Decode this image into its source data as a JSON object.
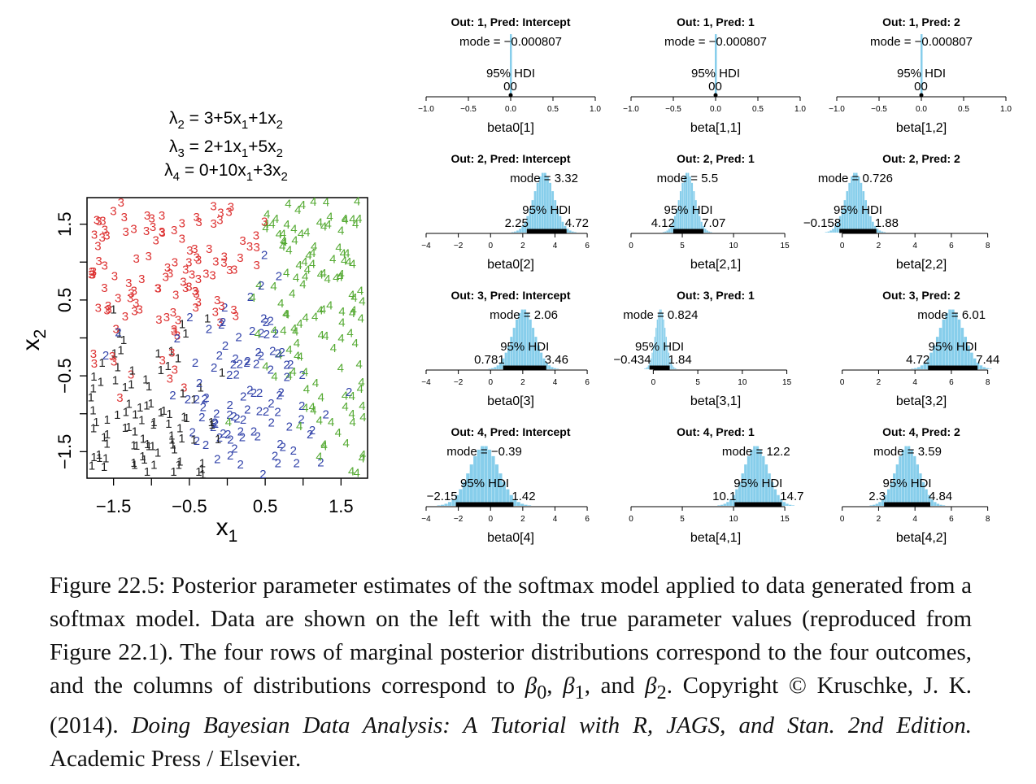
{
  "scatter": {
    "equations": [
      {
        "lambda": "λ",
        "sub": "2",
        "eq": " = 3+5x",
        "s1": "1",
        "mid": "+1x",
        "s2": "2"
      },
      {
        "lambda": "λ",
        "sub": "3",
        "eq": " = 2+1x",
        "s1": "1",
        "mid": "+5x",
        "s2": "2"
      },
      {
        "lambda": "λ",
        "sub": "4",
        "eq": " = 0+10x",
        "s1": "1",
        "mid": "+3x",
        "s2": "2"
      }
    ],
    "xlabel": "x",
    "xlabel_sub": "1",
    "ylabel": "x",
    "ylabel_sub": "2",
    "xticks": [
      "−1.5",
      "−0.5",
      "0.5",
      "1.5"
    ],
    "yticks": [
      "−1.5",
      "−0.5",
      "0.5",
      "1.5"
    ],
    "xlim": [
      -1.85,
      1.85
    ],
    "ylim": [
      -1.85,
      1.85
    ],
    "colors": {
      "1": "#222222",
      "2": "#3344aa",
      "3": "#dd3333",
      "4": "#55aa33"
    }
  },
  "chart_data": [
    {
      "type": "histogram",
      "title": "Out: 1, Pred: Intercept",
      "xlabel": "beta0[1]",
      "mode_label": "mode = −0.000807",
      "hdi_label": "95% HDI",
      "hdi_low_label": "0",
      "hdi_high_label": "0",
      "mode": -0.000807,
      "hdi": [
        0,
        0
      ],
      "xlim": [
        -1,
        1
      ],
      "xticks": [
        "−1.0",
        "−0.5",
        "0.0",
        "0.5",
        "1.0"
      ],
      "xtick_values": [
        -1,
        -0.5,
        0,
        0.5,
        1
      ],
      "spread": 0,
      "color": "#87ceeb"
    },
    {
      "type": "histogram",
      "title": "Out: 1, Pred: 1",
      "xlabel": "beta[1,1]",
      "mode_label": "mode = −0.000807",
      "hdi_label": "95% HDI",
      "hdi_low_label": "0",
      "hdi_high_label": "0",
      "mode": -0.000807,
      "hdi": [
        0,
        0
      ],
      "xlim": [
        -1,
        1
      ],
      "xticks": [
        "−1.0",
        "−0.5",
        "0.0",
        "0.5",
        "1.0"
      ],
      "xtick_values": [
        -1,
        -0.5,
        0,
        0.5,
        1
      ],
      "spread": 0,
      "color": "#87ceeb"
    },
    {
      "type": "histogram",
      "title": "Out: 1, Pred: 2",
      "xlabel": "beta[1,2]",
      "mode_label": "mode = −0.000807",
      "hdi_label": "95% HDI",
      "hdi_low_label": "0",
      "hdi_high_label": "0",
      "mode": -0.000807,
      "hdi": [
        0,
        0
      ],
      "xlim": [
        -1,
        1
      ],
      "xticks": [
        "−1.0",
        "−0.5",
        "0.0",
        "0.5",
        "1.0"
      ],
      "xtick_values": [
        -1,
        -0.5,
        0,
        0.5,
        1
      ],
      "spread": 0,
      "color": "#87ceeb"
    },
    {
      "type": "histogram",
      "title": "Out: 2, Pred: Intercept",
      "xlabel": "beta0[2]",
      "mode_label": "mode = 3.32",
      "hdi_label": "95% HDI",
      "hdi_low_label": "2.25",
      "hdi_high_label": "4.72",
      "mode": 3.32,
      "hdi": [
        2.25,
        4.72
      ],
      "xlim": [
        -4,
        6.5
      ],
      "xticks": [
        "−4",
        "−2",
        "0",
        "2",
        "4",
        "6"
      ],
      "xtick_values": [
        -4,
        -2,
        0,
        2,
        4,
        6
      ],
      "color": "#87ceeb"
    },
    {
      "type": "histogram",
      "title": "Out: 2, Pred: 1",
      "xlabel": "beta[2,1]",
      "mode_label": "mode = 5.5",
      "hdi_label": "95% HDI",
      "hdi_low_label": "4.12",
      "hdi_high_label": "7.07",
      "mode": 5.5,
      "hdi": [
        4.12,
        7.07
      ],
      "xlim": [
        0,
        16.5
      ],
      "xticks": [
        "0",
        "5",
        "10",
        "15"
      ],
      "xtick_values": [
        0,
        5,
        10,
        15
      ],
      "color": "#87ceeb"
    },
    {
      "type": "histogram",
      "title": "Out: 2, Pred: 2",
      "xlabel": "beta[2,2]",
      "mode_label": "mode = 0.726",
      "hdi_label": "95% HDI",
      "hdi_low_label": "−0.158",
      "hdi_high_label": "1.88",
      "mode": 0.726,
      "hdi": [
        -0.158,
        1.88
      ],
      "xlim": [
        -0.3,
        9
      ],
      "xticks": [
        "0",
        "2",
        "4",
        "6",
        "8"
      ],
      "xtick_values": [
        0,
        2,
        4,
        6,
        8
      ],
      "color": "#87ceeb"
    },
    {
      "type": "histogram",
      "title": "Out: 3, Pred: Intercept",
      "xlabel": "beta0[3]",
      "mode_label": "mode = 2.06",
      "hdi_label": "95% HDI",
      "hdi_low_label": "0.781",
      "hdi_high_label": "3.46",
      "mode": 2.06,
      "hdi": [
        0.781,
        3.46
      ],
      "xlim": [
        -4,
        6.5
      ],
      "xticks": [
        "−4",
        "−2",
        "0",
        "2",
        "4",
        "6"
      ],
      "xtick_values": [
        -4,
        -2,
        0,
        2,
        4,
        6
      ],
      "color": "#87ceeb"
    },
    {
      "type": "histogram",
      "title": "Out: 3, Pred: 1",
      "xlabel": "beta[3,1]",
      "mode_label": "mode = 0.824",
      "hdi_label": "95% HDI",
      "hdi_low_label": "−0.434",
      "hdi_high_label": "1.84",
      "mode": 0.824,
      "hdi": [
        -0.434,
        1.84
      ],
      "xlim": [
        -2.5,
        16.5
      ],
      "xticks": [
        "0",
        "5",
        "10",
        "15"
      ],
      "xtick_values": [
        0,
        5,
        10,
        15
      ],
      "color": "#87ceeb"
    },
    {
      "type": "histogram",
      "title": "Out: 3, Pred: 2",
      "xlabel": "beta[3,2]",
      "mode_label": "mode = 6.01",
      "hdi_label": "95% HDI",
      "hdi_low_label": "4.72",
      "hdi_high_label": "7.44",
      "mode": 6.01,
      "hdi": [
        4.72,
        7.44
      ],
      "xlim": [
        -0.3,
        9
      ],
      "xticks": [
        "0",
        "2",
        "4",
        "6",
        "8"
      ],
      "xtick_values": [
        0,
        2,
        4,
        6,
        8
      ],
      "color": "#87ceeb"
    },
    {
      "type": "histogram",
      "title": "Out: 4, Pred: Intercept",
      "xlabel": "beta0[4]",
      "mode_label": "mode = −0.39",
      "hdi_label": "95% HDI",
      "hdi_low_label": "−2.15",
      "hdi_high_label": "1.42",
      "mode": -0.39,
      "hdi": [
        -2.15,
        1.42
      ],
      "xlim": [
        -4,
        6.5
      ],
      "xticks": [
        "−4",
        "−2",
        "0",
        "2",
        "4",
        "6"
      ],
      "xtick_values": [
        -4,
        -2,
        0,
        2,
        4,
        6
      ],
      "color": "#87ceeb"
    },
    {
      "type": "histogram",
      "title": "Out: 4, Pred: 1",
      "xlabel": "beta[4,1]",
      "mode_label": "mode = 12.2",
      "hdi_label": "95% HDI",
      "hdi_low_label": "10.1",
      "hdi_high_label": "14.7",
      "mode": 12.2,
      "hdi": [
        10.1,
        14.7
      ],
      "xlim": [
        0,
        16.5
      ],
      "xticks": [
        "0",
        "5",
        "10",
        "15"
      ],
      "xtick_values": [
        0,
        5,
        10,
        15
      ],
      "color": "#87ceeb"
    },
    {
      "type": "histogram",
      "title": "Out: 4, Pred: 2",
      "xlabel": "beta[4,2]",
      "mode_label": "mode = 3.59",
      "hdi_label": "95% HDI",
      "hdi_low_label": "2.3",
      "hdi_high_label": "4.84",
      "mode": 3.59,
      "hdi": [
        2.3,
        4.84
      ],
      "xlim": [
        -0.3,
        9
      ],
      "xticks": [
        "0",
        "2",
        "4",
        "6",
        "8"
      ],
      "xtick_values": [
        0,
        2,
        4,
        6,
        8
      ],
      "color": "#87ceeb"
    }
  ],
  "caption": {
    "p1": "Figure 22.5: Posterior parameter estimates of the softmax model applied to data generated from a softmax model.  Data are shown on the left with the true parameter values (reproduced from Figure 22.1).  The four rows of marginal posterior distributions correspond to the four outcomes, and the columns of distributions correspond to ",
    "b0": "β",
    "b0sub": "0",
    "sep1": ", ",
    "b1": "β",
    "b1sub": "1",
    "sep2": ", and ",
    "b2": "β",
    "b2sub": "2",
    "p2": ".   Copyright © Kruschke, J. K. (2014). ",
    "book": "Doing Bayesian Data Analysis: A Tutorial with R, JAGS, and Stan. 2nd Edition.",
    "p3": " Academic Press / Elsevier."
  }
}
